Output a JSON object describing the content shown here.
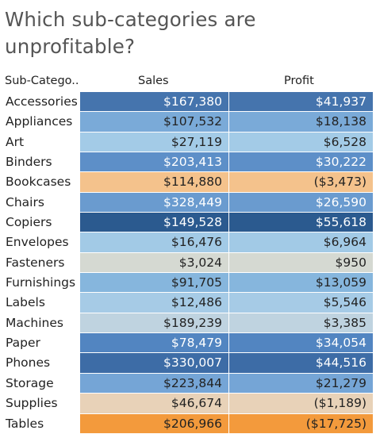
{
  "title": "Which sub-categories are unprofitable?",
  "chart_data": {
    "type": "table",
    "title": "Which sub-categories are unprofitable?",
    "columns": [
      "Sub-Catego..",
      "Sales",
      "Profit"
    ],
    "rows": [
      {
        "sub_category": "Accessories",
        "sales": "$167,380",
        "profit": "$41,937",
        "sales_value": 167380,
        "profit_value": 41937,
        "color": "#4574ad",
        "text_color": "#ffffff"
      },
      {
        "sub_category": "Appliances",
        "sales": "$107,532",
        "profit": "$18,138",
        "sales_value": 107532,
        "profit_value": 18138,
        "color": "#7aaad8",
        "text_color": "#222222"
      },
      {
        "sub_category": "Art",
        "sales": "$27,119",
        "profit": "$6,528",
        "sales_value": 27119,
        "profit_value": 6528,
        "color": "#a3cbe7",
        "text_color": "#222222"
      },
      {
        "sub_category": "Binders",
        "sales": "$203,413",
        "profit": "$30,222",
        "sales_value": 203413,
        "profit_value": 30222,
        "color": "#5d8fc8",
        "text_color": "#ffffff"
      },
      {
        "sub_category": "Bookcases",
        "sales": "$114,880",
        "profit": "($3,473)",
        "sales_value": 114880,
        "profit_value": -3473,
        "color": "#f4c28c",
        "text_color": "#222222"
      },
      {
        "sub_category": "Chairs",
        "sales": "$328,449",
        "profit": "$26,590",
        "sales_value": 328449,
        "profit_value": 26590,
        "color": "#6a9bcf",
        "text_color": "#ffffff"
      },
      {
        "sub_category": "Copiers",
        "sales": "$149,528",
        "profit": "$55,618",
        "sales_value": 149528,
        "profit_value": 55618,
        "color": "#2b5a8f",
        "text_color": "#ffffff"
      },
      {
        "sub_category": "Envelopes",
        "sales": "$16,476",
        "profit": "$6,964",
        "sales_value": 16476,
        "profit_value": 6964,
        "color": "#a2cae6",
        "text_color": "#222222"
      },
      {
        "sub_category": "Fasteners",
        "sales": "$3,024",
        "profit": "$950",
        "sales_value": 3024,
        "profit_value": 950,
        "color": "#d5d9d2",
        "text_color": "#222222"
      },
      {
        "sub_category": "Furnishings",
        "sales": "$91,705",
        "profit": "$13,059",
        "sales_value": 91705,
        "profit_value": 13059,
        "color": "#86b6dd",
        "text_color": "#222222"
      },
      {
        "sub_category": "Labels",
        "sales": "$12,486",
        "profit": "$5,546",
        "sales_value": 12486,
        "profit_value": 5546,
        "color": "#a6cbe6",
        "text_color": "#222222"
      },
      {
        "sub_category": "Machines",
        "sales": "$189,239",
        "profit": "$3,385",
        "sales_value": 189239,
        "profit_value": 3385,
        "color": "#bfd3e0",
        "text_color": "#222222"
      },
      {
        "sub_category": "Paper",
        "sales": "$78,479",
        "profit": "$34,054",
        "sales_value": 78479,
        "profit_value": 34054,
        "color": "#5285c1",
        "text_color": "#ffffff"
      },
      {
        "sub_category": "Phones",
        "sales": "$330,007",
        "profit": "$44,516",
        "sales_value": 330007,
        "profit_value": 44516,
        "color": "#3d6ca6",
        "text_color": "#ffffff"
      },
      {
        "sub_category": "Storage",
        "sales": "$223,844",
        "profit": "$21,279",
        "sales_value": 223844,
        "profit_value": 21279,
        "color": "#75a5d6",
        "text_color": "#222222"
      },
      {
        "sub_category": "Supplies",
        "sales": "$46,674",
        "profit": "($1,189)",
        "sales_value": 46674,
        "profit_value": -1189,
        "color": "#e8d2b8",
        "text_color": "#222222"
      },
      {
        "sub_category": "Tables",
        "sales": "$206,966",
        "profit": "($17,725)",
        "sales_value": 206966,
        "profit_value": -17725,
        "color": "#f39a3c",
        "text_color": "#222222"
      }
    ]
  }
}
